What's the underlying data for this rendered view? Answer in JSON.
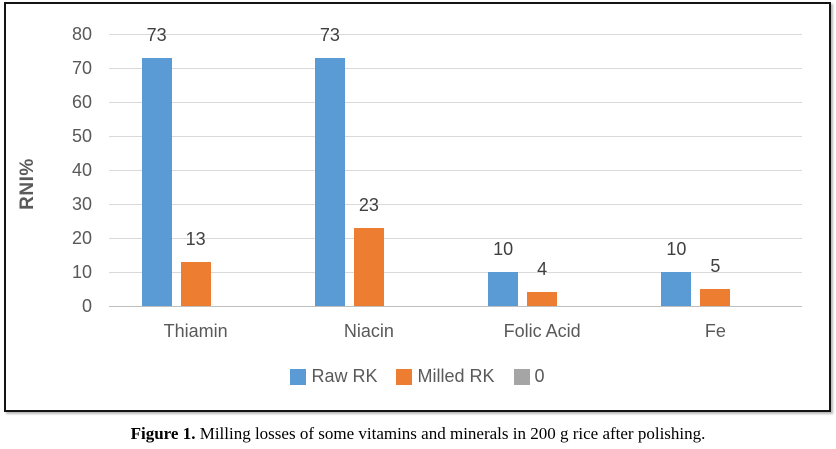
{
  "chart_data": {
    "type": "bar",
    "title": "",
    "categories": [
      "Thiamin",
      "Niacin",
      "Folic Acid",
      "Fe"
    ],
    "series": [
      {
        "name": "Raw RK",
        "color": "#5B9BD5",
        "values": [
          73,
          73,
          10,
          10
        ],
        "data_labels": true
      },
      {
        "name": "Milled RK",
        "color": "#ED7D31",
        "values": [
          13,
          23,
          4,
          5
        ],
        "data_labels": true
      },
      {
        "name": "0",
        "color": "#A5A5A5",
        "values": [
          0,
          0,
          0,
          0
        ],
        "data_labels": false
      }
    ],
    "xlabel": "",
    "ylabel": "RNI%",
    "ylim": [
      0,
      80
    ],
    "yticks": [
      0,
      10,
      20,
      30,
      40,
      50,
      60,
      70,
      80
    ],
    "grid": true,
    "legend_position": "bottom"
  },
  "caption": {
    "prefix": "Figure 1.",
    "text": "Milling losses of some vitamins and minerals in 200 g rice after polishing."
  },
  "colors": {
    "series_blue": "#5B9BD5",
    "series_orange": "#ED7D31",
    "series_gray": "#A5A5A5",
    "gridline": "#D9D9D9",
    "axis_line": "#BFBFBF",
    "axis_text": "#595959",
    "data_label_text": "#404040",
    "frame_border": "#141414"
  }
}
